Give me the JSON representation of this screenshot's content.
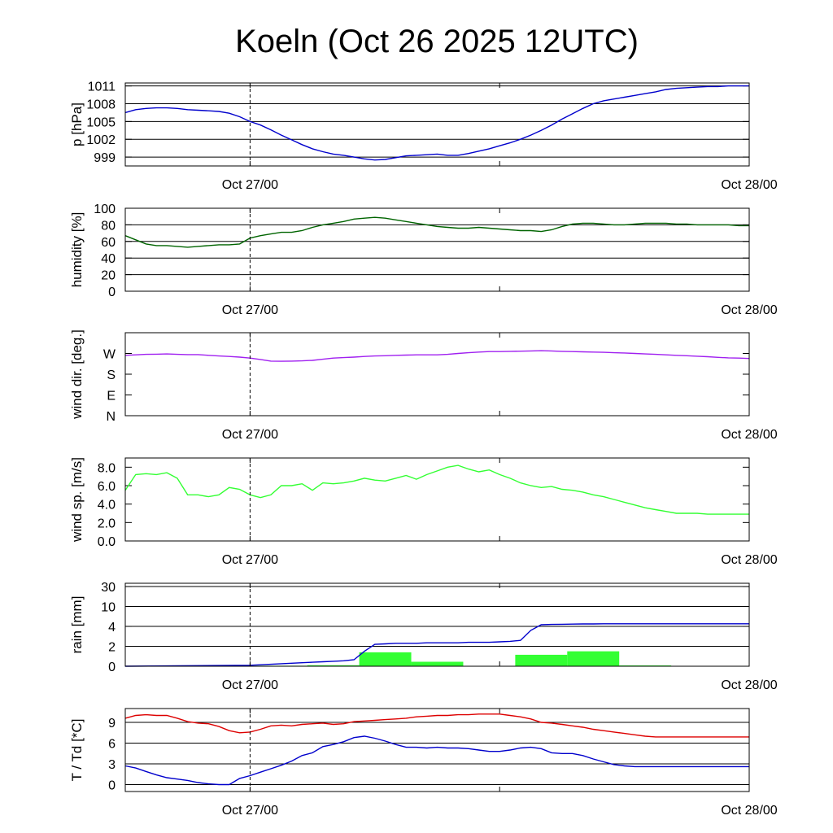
{
  "title": "Koeln (Oct 26 2025 12UTC)",
  "colors": {
    "pressure": "#0000cc",
    "humidity": "#006400",
    "wind_dir": "#a020f0",
    "wind_speed": "#33ff33",
    "rain_bar": "#33ff33",
    "rain_accum": "#0000cc",
    "temperature": "#dd0000",
    "dewpoint": "#0000cc"
  },
  "chart_data": [
    {
      "type": "line",
      "name": "pressure",
      "ylabel": "p [hPa]",
      "x_ticks": [
        "Oct 27/00",
        "Oct 28/00"
      ],
      "x_range_hours": [
        12,
        72
      ],
      "ylim": [
        997.5,
        1011.5
      ],
      "y_ticks": [
        999,
        1002,
        1005,
        1008,
        1011
      ],
      "grid": [
        999,
        1002,
        1005,
        1008,
        1011
      ],
      "series": [
        {
          "name": "p",
          "x": [
            12,
            13,
            14,
            15,
            16,
            17,
            18,
            19,
            20,
            21,
            22,
            23,
            24,
            25,
            26,
            27,
            28,
            29,
            30,
            31,
            32,
            33,
            34,
            35,
            36,
            37,
            38,
            39,
            40,
            41,
            42,
            43,
            44,
            45,
            46,
            47,
            48,
            49,
            50,
            51,
            52,
            53,
            54,
            55,
            56,
            57,
            58,
            59,
            60,
            61,
            62,
            63,
            64,
            65,
            66,
            67,
            68,
            69,
            70,
            71,
            72
          ],
          "values": [
            1006.5,
            1007,
            1007.2,
            1007.3,
            1007.3,
            1007.2,
            1007,
            1006.9,
            1006.8,
            1006.7,
            1006.4,
            1005.8,
            1005,
            1004.4,
            1003.6,
            1002.7,
            1001.9,
            1001.1,
            1000.4,
            999.9,
            999.5,
            999.3,
            999.0,
            998.7,
            998.5,
            998.6,
            998.9,
            999.2,
            999.3,
            999.4,
            999.5,
            999.3,
            999.3,
            999.6,
            1000,
            1000.4,
            1000.9,
            1001.4,
            1002.0,
            1002.7,
            1003.5,
            1004.4,
            1005.4,
            1006.3,
            1007.2,
            1008.0,
            1008.5,
            1008.8,
            1009.1,
            1009.4,
            1009.7,
            1010.0,
            1010.4,
            1010.6,
            1010.7,
            1010.8,
            1010.9,
            1010.9,
            1011.0,
            1011.0,
            1011.0
          ]
        }
      ]
    },
    {
      "type": "line",
      "name": "humidity",
      "ylabel": "humidity [%]",
      "x_ticks": [
        "Oct 27/00",
        "Oct 28/00"
      ],
      "x_range_hours": [
        12,
        72
      ],
      "ylim": [
        0,
        100
      ],
      "y_ticks": [
        0,
        20,
        40,
        60,
        80,
        100
      ],
      "grid": [
        20,
        40,
        60,
        80
      ],
      "series": [
        {
          "name": "humidity",
          "x": [
            12,
            13,
            14,
            15,
            16,
            17,
            18,
            19,
            20,
            21,
            22,
            23,
            24,
            25,
            26,
            27,
            28,
            29,
            30,
            31,
            32,
            33,
            34,
            35,
            36,
            37,
            38,
            39,
            40,
            41,
            42,
            43,
            44,
            45,
            46,
            47,
            48,
            49,
            50,
            51,
            52,
            53,
            54,
            55,
            56,
            57,
            58,
            59,
            60,
            61,
            62,
            63,
            64,
            65,
            66,
            67,
            68,
            69,
            70,
            71,
            72
          ],
          "values": [
            67,
            62,
            57,
            55,
            55,
            54,
            53,
            54,
            55,
            56,
            56,
            57,
            64,
            67,
            69,
            71,
            71,
            73,
            77,
            80,
            82,
            84,
            87,
            88,
            89,
            88,
            86,
            84,
            82,
            80,
            78,
            77,
            76,
            76,
            77,
            76,
            75,
            74,
            73,
            73,
            72,
            74,
            78,
            81,
            82,
            82,
            81,
            80,
            80,
            81,
            82,
            82,
            82,
            81,
            81,
            80,
            80,
            80,
            80,
            79,
            79
          ]
        }
      ]
    },
    {
      "type": "line",
      "name": "wind_direction",
      "ylabel": "wind dir. [deg.]",
      "x_ticks": [
        "Oct 27/00",
        "Oct 28/00"
      ],
      "x_range_hours": [
        12,
        72
      ],
      "ylim": [
        0,
        360
      ],
      "y_ticks": [
        {
          "value": 0,
          "label": "N"
        },
        {
          "value": 90,
          "label": "E"
        },
        {
          "value": 180,
          "label": "S"
        },
        {
          "value": 270,
          "label": "W"
        }
      ],
      "grid": [],
      "series": [
        {
          "name": "wind_dir",
          "x": [
            12,
            13,
            14,
            15,
            16,
            17,
            18,
            19,
            20,
            21,
            22,
            23,
            24,
            25,
            26,
            27,
            28,
            29,
            30,
            31,
            32,
            33,
            34,
            35,
            36,
            37,
            38,
            39,
            40,
            41,
            42,
            43,
            44,
            45,
            46,
            47,
            48,
            49,
            50,
            51,
            52,
            53,
            54,
            55,
            56,
            57,
            58,
            59,
            60,
            61,
            62,
            63,
            64,
            65,
            66,
            67,
            68,
            69,
            70,
            71,
            72
          ],
          "values": [
            262,
            264,
            266,
            267,
            268,
            266,
            265,
            265,
            262,
            259,
            257,
            254,
            250,
            244,
            237,
            236,
            237,
            238,
            240,
            245,
            250,
            252,
            254,
            257,
            259,
            260,
            262,
            263,
            264,
            264,
            264,
            266,
            270,
            273,
            276,
            278,
            278,
            279,
            280,
            281,
            282,
            281,
            279,
            278,
            277,
            276,
            275,
            273,
            272,
            270,
            268,
            266,
            264,
            262,
            260,
            258,
            256,
            253,
            251,
            250,
            248
          ]
        }
      ]
    },
    {
      "type": "line",
      "name": "wind_speed",
      "ylabel": "wind sp. [m/s]",
      "x_ticks": [
        "Oct 27/00",
        "Oct 28/00"
      ],
      "x_range_hours": [
        12,
        72
      ],
      "ylim": [
        0,
        9
      ],
      "y_ticks": [
        0.0,
        2.0,
        4.0,
        6.0,
        8.0
      ],
      "y_tick_labels": [
        "0.0",
        "2.0",
        "4.0",
        "6.0",
        "8.0"
      ],
      "grid": [],
      "series": [
        {
          "name": "wind_speed",
          "x": [
            12,
            13,
            14,
            15,
            16,
            17,
            18,
            19,
            20,
            21,
            22,
            23,
            24,
            25,
            26,
            27,
            28,
            29,
            30,
            31,
            32,
            33,
            34,
            35,
            36,
            37,
            38,
            39,
            40,
            41,
            42,
            43,
            44,
            45,
            46,
            47,
            48,
            49,
            50,
            51,
            52,
            53,
            54,
            55,
            56,
            57,
            58,
            59,
            60,
            61,
            62,
            63,
            64,
            65,
            66,
            67,
            68,
            69,
            70,
            71,
            72
          ],
          "values": [
            5.5,
            7.2,
            7.3,
            7.2,
            7.4,
            6.8,
            5.0,
            5.0,
            4.8,
            5.0,
            5.8,
            5.6,
            5.0,
            4.7,
            5.0,
            6.0,
            6.0,
            6.2,
            5.5,
            6.3,
            6.2,
            6.3,
            6.5,
            6.8,
            6.6,
            6.5,
            6.8,
            7.1,
            6.7,
            7.2,
            7.6,
            8.0,
            8.2,
            7.8,
            7.5,
            7.7,
            7.2,
            6.8,
            6.3,
            6.0,
            5.8,
            5.9,
            5.6,
            5.5,
            5.3,
            5.0,
            4.8,
            4.5,
            4.2,
            3.9,
            3.6,
            3.4,
            3.2,
            3.0,
            3.0,
            3.0,
            2.9,
            2.9,
            2.9,
            2.9,
            2.9
          ]
        }
      ]
    },
    {
      "type": "bar+line",
      "name": "rain",
      "ylabel": "rain [mm]",
      "x_ticks": [
        "Oct 27/00",
        "Oct 28/00"
      ],
      "x_range_hours": [
        12,
        72
      ],
      "y_ticks": [
        {
          "value": 0,
          "label": "0"
        },
        {
          "value": 2,
          "label": "2"
        },
        {
          "value": 4,
          "label": "4"
        },
        {
          "value": 10,
          "label": "10"
        },
        {
          "value": 30,
          "label": "30"
        }
      ],
      "grid": [
        2,
        4,
        10,
        30
      ],
      "bars_6h": [
        {
          "x0": 24.5,
          "x1": 29.5,
          "value": 0.05
        },
        {
          "x0": 29.5,
          "x1": 34.5,
          "value": 0.1
        },
        {
          "x0": 34.5,
          "x1": 39.5,
          "value": 1.4
        },
        {
          "x0": 39.5,
          "x1": 44.5,
          "value": 0.45
        },
        {
          "x0": 49.5,
          "x1": 54.5,
          "value": 1.15
        },
        {
          "x0": 54.5,
          "x1": 59.5,
          "value": 1.5
        },
        {
          "x0": 59.5,
          "x1": 64.5,
          "value": 0.08
        }
      ],
      "series": [
        {
          "name": "accumulated",
          "x": [
            12,
            24,
            25,
            26,
            27,
            28,
            29,
            30,
            31,
            32,
            33,
            34,
            35,
            36,
            37,
            38,
            39,
            40,
            41,
            42,
            43,
            44,
            45,
            46,
            47,
            48,
            49,
            50,
            51,
            52,
            53,
            54,
            55,
            56,
            57,
            58,
            59,
            60,
            61,
            62,
            63,
            64,
            65,
            66,
            67,
            68,
            69,
            70,
            71,
            72
          ],
          "values": [
            0,
            0.1,
            0.15,
            0.2,
            0.25,
            0.3,
            0.35,
            0.4,
            0.45,
            0.5,
            0.55,
            0.65,
            1.5,
            2.2,
            2.25,
            2.3,
            2.3,
            2.3,
            2.35,
            2.35,
            2.35,
            2.35,
            2.4,
            2.4,
            2.4,
            2.45,
            2.5,
            2.6,
            3.6,
            4.5,
            4.6,
            4.65,
            4.7,
            4.75,
            4.75,
            4.8,
            4.8,
            4.8,
            4.8,
            4.8,
            4.8,
            4.8,
            4.8,
            4.8,
            4.8,
            4.8,
            4.8,
            4.8,
            4.8,
            4.8
          ]
        }
      ]
    },
    {
      "type": "line",
      "name": "temperature_dewpoint",
      "ylabel": "T / Td [*C]",
      "x_ticks": [
        "Oct 27/00",
        "Oct 28/00"
      ],
      "x_range_hours": [
        12,
        72
      ],
      "ylim": [
        -1,
        11
      ],
      "y_ticks": [
        0,
        3,
        6,
        9
      ],
      "grid": [
        0,
        3,
        6,
        9
      ],
      "series": [
        {
          "name": "T",
          "x": [
            12,
            13,
            14,
            15,
            16,
            17,
            18,
            19,
            20,
            21,
            22,
            23,
            24,
            25,
            26,
            27,
            28,
            29,
            30,
            31,
            32,
            33,
            34,
            35,
            36,
            37,
            38,
            39,
            40,
            41,
            42,
            43,
            44,
            45,
            46,
            47,
            48,
            49,
            50,
            51,
            52,
            53,
            54,
            55,
            56,
            57,
            58,
            59,
            60,
            61,
            62,
            63,
            64,
            65,
            66,
            67,
            68,
            69,
            70,
            71,
            72
          ],
          "values": [
            9.6,
            10.0,
            10.1,
            10.0,
            10.0,
            9.6,
            9.1,
            8.9,
            8.8,
            8.4,
            7.8,
            7.5,
            7.6,
            8.0,
            8.5,
            8.6,
            8.5,
            8.7,
            8.8,
            8.9,
            8.7,
            8.8,
            9.1,
            9.2,
            9.3,
            9.4,
            9.5,
            9.6,
            9.8,
            9.9,
            10.0,
            10.0,
            10.1,
            10.1,
            10.2,
            10.2,
            10.2,
            10.0,
            9.8,
            9.5,
            9.0,
            8.9,
            8.7,
            8.5,
            8.3,
            8.0,
            7.8,
            7.6,
            7.4,
            7.2,
            7.0,
            6.9,
            6.9,
            6.9,
            6.9,
            6.9,
            6.9,
            6.9,
            6.9,
            6.9,
            6.9
          ]
        },
        {
          "name": "Td",
          "x": [
            12,
            13,
            14,
            15,
            16,
            17,
            18,
            19,
            20,
            21,
            22,
            23,
            24,
            25,
            26,
            27,
            28,
            29,
            30,
            31,
            32,
            33,
            34,
            35,
            36,
            37,
            38,
            39,
            40,
            41,
            42,
            43,
            44,
            45,
            46,
            47,
            48,
            49,
            50,
            51,
            52,
            53,
            54,
            55,
            56,
            57,
            58,
            59,
            60,
            61,
            62,
            63,
            64,
            65,
            66,
            67,
            68,
            69,
            70,
            71,
            72
          ],
          "values": [
            2.7,
            2.4,
            1.9,
            1.4,
            1.0,
            0.8,
            0.6,
            0.3,
            0.1,
            0.0,
            0.0,
            0.9,
            1.3,
            1.8,
            2.3,
            2.8,
            3.4,
            4.2,
            4.6,
            5.5,
            5.8,
            6.2,
            6.8,
            7.0,
            6.7,
            6.3,
            5.8,
            5.4,
            5.4,
            5.3,
            5.4,
            5.3,
            5.3,
            5.2,
            5.0,
            4.8,
            4.8,
            5.0,
            5.3,
            5.4,
            5.2,
            4.6,
            4.5,
            4.5,
            4.2,
            3.7,
            3.3,
            2.9,
            2.7,
            2.6,
            2.6,
            2.6,
            2.6,
            2.6,
            2.6,
            2.6,
            2.6,
            2.6,
            2.6,
            2.6,
            2.6
          ]
        }
      ]
    }
  ]
}
